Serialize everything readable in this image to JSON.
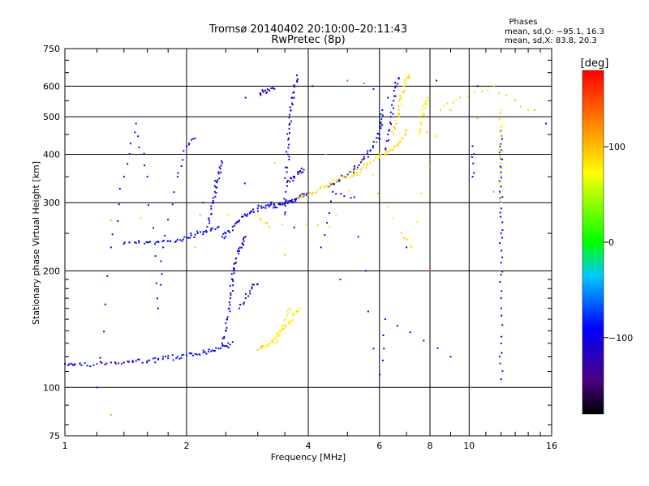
{
  "header": {
    "title": "Tromsø 20140402 20:10:00–20:11:43",
    "subtitle": "RwPretec (8p)",
    "phases_title": "Phases",
    "stats_o": "mean, sd,O: −95.1, 16.3",
    "stats_x": "mean, sd,X:  83.8, 20.3"
  },
  "colorbar": {
    "label": "[deg]",
    "ticks": [
      {
        "value": 100,
        "label": "100"
      },
      {
        "value": 0,
        "label": "0"
      },
      {
        "value": -100,
        "label": "−100"
      }
    ],
    "range": [
      -180,
      180
    ]
  },
  "chart_data": {
    "type": "scatter",
    "title": "Tromsø 20140402 20:10:00–20:11:43",
    "subtitle": "RwPretec (8p)",
    "xlabel": "Frequency [MHz]",
    "ylabel": "Stationary phase Virtual Height [km]",
    "x_scale": "log",
    "y_scale": "log",
    "xlim": [
      1,
      16
    ],
    "ylim": [
      75,
      750
    ],
    "x_ticks": [
      {
        "value": 1,
        "label": "1"
      },
      {
        "value": 2,
        "label": "2"
      },
      {
        "value": 4,
        "label": "4"
      },
      {
        "value": 6,
        "label": "6"
      },
      {
        "value": 8,
        "label": "8"
      },
      {
        "value": 10,
        "label": "10"
      },
      {
        "value": 16,
        "label": "16"
      }
    ],
    "y_ticks": [
      {
        "value": 75,
        "label": "75"
      },
      {
        "value": 100,
        "label": "100"
      },
      {
        "value": 200,
        "label": "200"
      },
      {
        "value": 300,
        "label": "300"
      },
      {
        "value": 400,
        "label": "400"
      },
      {
        "value": 500,
        "label": "500"
      },
      {
        "value": 600,
        "label": "600"
      },
      {
        "value": 750,
        "label": "750"
      }
    ],
    "grid": true,
    "point_color_by": "phase_deg",
    "series": [
      {
        "traces": [
          {
            "points": [
              [
                1.0,
                115
              ],
              [
                1.05,
                114
              ],
              [
                1.1,
                114
              ],
              [
                1.2,
                115
              ],
              [
                1.3,
                116
              ],
              [
                1.4,
                116
              ],
              [
                1.5,
                117
              ],
              [
                1.6,
                117
              ],
              [
                1.7,
                118
              ],
              [
                1.8,
                119
              ],
              [
                1.9,
                120
              ],
              [
                2.0,
                121
              ],
              [
                2.1,
                122
              ],
              [
                2.2,
                123
              ],
              [
                2.3,
                124
              ],
              [
                2.4,
                126
              ],
              [
                2.5,
                128
              ],
              [
                2.6,
                131
              ]
            ],
            "phase": -95
          },
          {
            "points": [
              [
                2.45,
                130
              ],
              [
                2.5,
                140
              ],
              [
                2.52,
                150
              ],
              [
                2.55,
                160
              ],
              [
                2.57,
                175
              ],
              [
                2.6,
                190
              ],
              [
                2.62,
                200
              ],
              [
                2.65,
                210
              ],
              [
                2.7,
                225
              ],
              [
                2.75,
                235
              ],
              [
                2.8,
                245
              ]
            ],
            "phase": -100
          },
          {
            "points": [
              [
                2.45,
                245
              ],
              [
                2.5,
                250
              ],
              [
                2.6,
                260
              ],
              [
                2.7,
                270
              ],
              [
                2.8,
                278
              ],
              [
                2.9,
                285
              ],
              [
                3.0,
                290
              ],
              [
                3.1,
                292
              ],
              [
                3.2,
                293
              ],
              [
                3.3,
                295
              ],
              [
                3.4,
                297
              ],
              [
                3.5,
                300
              ],
              [
                3.6,
                303
              ],
              [
                3.7,
                306
              ],
              [
                3.8,
                309
              ],
              [
                3.9,
                312
              ],
              [
                4.0,
                315
              ]
            ],
            "phase": -100
          },
          {
            "points": [
              [
                1.4,
                235
              ],
              [
                1.5,
                236
              ],
              [
                1.6,
                237
              ],
              [
                1.7,
                238
              ],
              [
                1.8,
                239
              ],
              [
                1.9,
                241
              ],
              [
                2.0,
                244
              ],
              [
                2.1,
                248
              ],
              [
                2.2,
                252
              ],
              [
                2.3,
                256
              ],
              [
                2.4,
                260
              ]
            ],
            "phase": -95
          },
          {
            "points": [
              [
                2.25,
                260
              ],
              [
                2.3,
                280
              ],
              [
                2.32,
                300
              ],
              [
                2.35,
                320
              ],
              [
                2.37,
                340
              ],
              [
                2.4,
                360
              ],
              [
                2.45,
                380
              ]
            ],
            "phase": -100
          },
          {
            "points": [
              [
                2.7,
                160
              ],
              [
                2.8,
                170
              ],
              [
                2.9,
                180
              ],
              [
                3.0,
                185
              ]
            ],
            "phase": -120
          },
          {
            "points": [
              [
                3.05,
                575
              ],
              [
                3.1,
                580
              ],
              [
                3.2,
                585
              ],
              [
                3.3,
                590
              ]
            ],
            "phase": -115
          },
          {
            "points": [
              [
                3.5,
                280
              ],
              [
                3.52,
                320
              ],
              [
                3.54,
                360
              ],
              [
                3.56,
                400
              ],
              [
                3.58,
                440
              ],
              [
                3.6,
                480
              ],
              [
                3.62,
                520
              ],
              [
                3.65,
                560
              ],
              [
                3.7,
                600
              ],
              [
                3.75,
                640
              ]
            ],
            "phase": -105
          },
          {
            "points": [
              [
                3.6,
                340
              ],
              [
                3.7,
                350
              ],
              [
                3.8,
                360
              ],
              [
                3.9,
                365
              ]
            ],
            "phase": -115
          },
          {
            "points": [
              [
                4.5,
                330
              ],
              [
                4.7,
                340
              ],
              [
                4.9,
                350
              ],
              [
                5.1,
                360
              ],
              [
                5.3,
                370
              ],
              [
                5.5,
                390
              ],
              [
                5.7,
                410
              ],
              [
                5.9,
                430
              ],
              [
                6.0,
                450
              ],
              [
                6.05,
                480
              ],
              [
                6.1,
                520
              ]
            ],
            "phase": -95
          },
          {
            "points": [
              [
                6.2,
                400
              ],
              [
                6.3,
                450
              ],
              [
                6.4,
                500
              ],
              [
                6.5,
                550
              ],
              [
                6.6,
                600
              ],
              [
                6.7,
                630
              ]
            ],
            "phase": -100
          },
          {
            "points": [
              [
                12.0,
                105
              ],
              [
                12.0,
                130
              ],
              [
                12.0,
                170
              ],
              [
                12.0,
                210
              ],
              [
                12.0,
                250
              ],
              [
                12.0,
                290
              ],
              [
                12.0,
                330
              ],
              [
                12.0,
                370
              ],
              [
                12.0,
                410
              ],
              [
                12.0,
                460
              ]
            ],
            "phase": -95
          },
          {
            "points": [
              [
                10.2,
                350
              ],
              [
                10.2,
                420
              ]
            ],
            "phase": -95
          },
          {
            "points": [
              [
                1.2,
                100
              ],
              [
                1.3,
                230
              ],
              [
                1.4,
                350
              ],
              [
                1.5,
                480
              ],
              [
                1.6,
                350
              ],
              [
                1.7,
                160
              ],
              [
                1.75,
                230
              ],
              [
                1.9,
                350
              ],
              [
                2.0,
                420
              ],
              [
                2.1,
                440
              ],
              [
                4.3,
                230
              ],
              [
                4.6,
                320
              ],
              [
                5.2,
                310
              ],
              [
                6.0,
                100
              ],
              [
                6.2,
                150
              ],
              [
                9.0,
                120
              ]
            ],
            "phase": -100
          }
        ]
      },
      {
        "traces": [
          {
            "points": [
              [
                3.0,
                125
              ],
              [
                3.1,
                128
              ],
              [
                3.2,
                130
              ],
              [
                3.3,
                133
              ],
              [
                3.4,
                137
              ],
              [
                3.5,
                142
              ],
              [
                3.6,
                148
              ],
              [
                3.7,
                155
              ],
              [
                3.8,
                160
              ]
            ],
            "phase": 80
          },
          {
            "points": [
              [
                3.8,
                310
              ],
              [
                4.0,
                315
              ],
              [
                4.2,
                322
              ],
              [
                4.4,
                330
              ],
              [
                4.6,
                338
              ],
              [
                4.8,
                346
              ],
              [
                5.0,
                352
              ],
              [
                5.2,
                358
              ],
              [
                5.4,
                365
              ],
              [
                5.6,
                375
              ],
              [
                5.8,
                385
              ],
              [
                6.0,
                395
              ],
              [
                6.2,
                400
              ],
              [
                6.4,
                410
              ],
              [
                6.6,
                420
              ],
              [
                6.8,
                440
              ],
              [
                7.0,
                460
              ]
            ],
            "phase": 85
          },
          {
            "points": [
              [
                6.5,
                450
              ],
              [
                6.6,
                480
              ],
              [
                6.7,
                520
              ],
              [
                6.8,
                560
              ],
              [
                6.9,
                600
              ],
              [
                7.0,
                630
              ],
              [
                7.1,
                640
              ]
            ],
            "phase": 88
          },
          {
            "points": [
              [
                7.5,
                450
              ],
              [
                7.6,
                480
              ],
              [
                7.7,
                510
              ],
              [
                7.8,
                540
              ],
              [
                7.9,
                560
              ]
            ],
            "phase": 80
          },
          {
            "points": [
              [
                12.0,
                300
              ],
              [
                12.0,
                340
              ],
              [
                12.0,
                380
              ],
              [
                12.0,
                420
              ],
              [
                12.0,
                470
              ],
              [
                12.0,
                520
              ]
            ],
            "phase": 85
          },
          {
            "points": [
              [
                3.3,
                130
              ],
              [
                3.4,
                140
              ],
              [
                3.5,
                150
              ],
              [
                3.6,
                160
              ]
            ],
            "phase": 75
          },
          {
            "points": [
              [
                1.3,
                270
              ],
              [
                3.0,
                280
              ],
              [
                3.2,
                260
              ],
              [
                4.5,
                260
              ],
              [
                5.5,
                380
              ],
              [
                6.8,
                250
              ],
              [
                7.2,
                230
              ],
              [
                8.5,
                520
              ],
              [
                9.5,
                560
              ],
              [
                11.5,
                600
              ],
              [
                14.0,
                520
              ],
              [
                3.3,
                380
              ]
            ],
            "phase": 90
          }
        ]
      }
    ],
    "scatter_noise": [
      [
        1.3,
        85,
        120
      ],
      [
        1.4,
        500,
        150
      ],
      [
        2.2,
        300,
        -95
      ],
      [
        2.8,
        560,
        -100
      ],
      [
        4.1,
        600,
        -100
      ],
      [
        4.3,
        500,
        150
      ],
      [
        5.0,
        620,
        150
      ],
      [
        5.8,
        590,
        -100
      ],
      [
        6.3,
        560,
        -120
      ],
      [
        7.0,
        230,
        -95
      ],
      [
        8.0,
        200,
        150
      ],
      [
        8.3,
        620,
        -100
      ],
      [
        9.0,
        520,
        100
      ],
      [
        10.1,
        100,
        150
      ],
      [
        10.5,
        600,
        -100
      ],
      [
        11.5,
        320,
        120
      ],
      [
        14.5,
        520,
        110
      ],
      [
        15.5,
        480,
        -100
      ],
      [
        2.05,
        250,
        -90
      ],
      [
        2.1,
        230,
        30
      ],
      [
        3.5,
        220,
        30
      ],
      [
        4.8,
        190,
        -80
      ],
      [
        5.5,
        610,
        140
      ]
    ]
  }
}
